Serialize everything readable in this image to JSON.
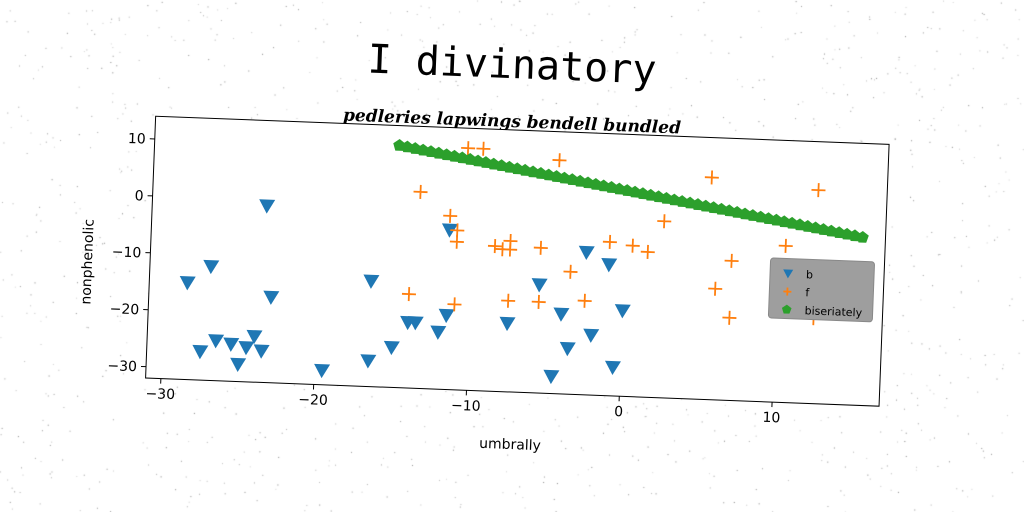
{
  "chart_data": {
    "type": "scatter",
    "title": "I divinatory",
    "subtitle": "pedleries lapwings bendell bundled",
    "xlabel": "umbrally",
    "ylabel": "nonphenolic",
    "xlim": [
      -31,
      17
    ],
    "ylim": [
      -32,
      14
    ],
    "xticks": [
      -30,
      -20,
      -10,
      0,
      10
    ],
    "xtick_labels": [
      "−30",
      "−20",
      "−10",
      "0",
      "10"
    ],
    "yticks": [
      10,
      0,
      -10,
      -20,
      -30
    ],
    "ytick_labels": [
      "10",
      "0",
      "−10",
      "−20",
      "−30"
    ],
    "grid": false,
    "legend_position": "right",
    "series": [
      {
        "name": "b",
        "marker": "triangle-down",
        "color": "#1f77b4",
        "points": [
          [
            -23.5,
            -1
          ],
          [
            -27,
            -12
          ],
          [
            -28.5,
            -15
          ],
          [
            -23,
            -17
          ],
          [
            -26.5,
            -25
          ],
          [
            -25.5,
            -25.5
          ],
          [
            -24,
            -24
          ],
          [
            -24.5,
            -26
          ],
          [
            -23.5,
            -26.5
          ],
          [
            -27.5,
            -27
          ],
          [
            -25,
            -29
          ],
          [
            -19.5,
            -29.5
          ],
          [
            -16.5,
            -27.5
          ],
          [
            -15,
            -25
          ],
          [
            -14,
            -20.5
          ],
          [
            -13.5,
            -20.5
          ],
          [
            -12,
            -22
          ],
          [
            -11.5,
            -19
          ],
          [
            -11.5,
            -4
          ],
          [
            -16.5,
            -13.5
          ],
          [
            -7.5,
            -20
          ],
          [
            -5.5,
            -13
          ],
          [
            -4,
            -18
          ],
          [
            -3.5,
            -24
          ],
          [
            -4.5,
            -29
          ],
          [
            -2,
            -21.5
          ],
          [
            -2.5,
            -7
          ],
          [
            -1,
            -9
          ],
          [
            0,
            -17
          ],
          [
            -0.5,
            -27
          ]
        ]
      },
      {
        "name": "f",
        "marker": "plus",
        "color": "#ff7f0e",
        "points": [
          [
            -13.5,
            2.5
          ],
          [
            -11.5,
            -1.5
          ],
          [
            -11,
            -4
          ],
          [
            -11,
            -6
          ],
          [
            -10.5,
            10.5
          ],
          [
            -9.5,
            10.5
          ],
          [
            -8.5,
            -6.5
          ],
          [
            -8,
            -7
          ],
          [
            -7.5,
            -5.5
          ],
          [
            -7.5,
            -7
          ],
          [
            -5.5,
            -6.5
          ],
          [
            -4.5,
            9
          ],
          [
            -3.5,
            -10.5
          ],
          [
            -2.5,
            -15.5
          ],
          [
            -1,
            -5
          ],
          [
            0.5,
            -5.5
          ],
          [
            1.5,
            -6.5
          ],
          [
            2.5,
            -1
          ],
          [
            -5.5,
            -16
          ],
          [
            -7.5,
            -16
          ],
          [
            -11,
            -17
          ],
          [
            -14,
            -15.5
          ],
          [
            5.5,
            7
          ],
          [
            6,
            -12.5
          ],
          [
            7,
            -7.5
          ],
          [
            7,
            -17.5
          ],
          [
            10.5,
            -4.5
          ],
          [
            12.5,
            5.5
          ],
          [
            12.5,
            -17
          ]
        ]
      },
      {
        "name": "biseriately",
        "marker": "pentagon",
        "color": "#2ca02c",
        "line": {
          "x_start": -15,
          "x_end": 15.5,
          "y_start": 10.5,
          "y_end": -2.5,
          "count": 60
        }
      }
    ]
  }
}
